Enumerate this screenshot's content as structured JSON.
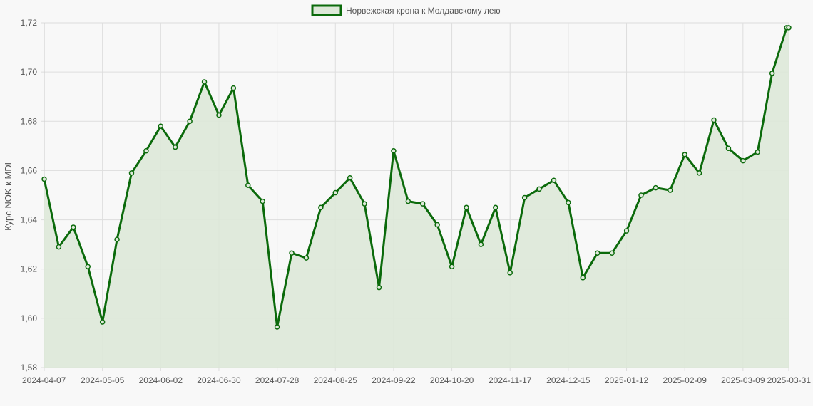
{
  "chart_data": {
    "type": "area",
    "title": "",
    "legend": {
      "label": "Норвежская крона к Молдавскому лею",
      "position": "top-center"
    },
    "ylabel": "Курс NOK к MDL",
    "xlabel": "",
    "ylim": [
      1.58,
      1.72
    ],
    "y_ticks": [
      "1,58",
      "1,60",
      "1,62",
      "1,64",
      "1,66",
      "1,68",
      "1,70",
      "1,72"
    ],
    "x_ticks": [
      "2024-04-07",
      "2024-05-05",
      "2024-06-02",
      "2024-06-30",
      "2024-07-28",
      "2024-08-25",
      "2024-09-22",
      "2024-10-20",
      "2024-11-17",
      "2024-12-15",
      "2025-01-12",
      "2025-02-09",
      "2025-03-09",
      "2025-03-31"
    ],
    "grid": true,
    "colors": {
      "line": "#0b6a0b",
      "fill": "#dde8d8",
      "grid": "#dddddd"
    },
    "series": [
      {
        "name": "Норвежская крона к Молдавскому лею",
        "x": [
          "2024-04-07",
          "2024-04-14",
          "2024-04-21",
          "2024-04-28",
          "2024-05-05",
          "2024-05-12",
          "2024-05-19",
          "2024-05-26",
          "2024-06-02",
          "2024-06-09",
          "2024-06-16",
          "2024-06-23",
          "2024-06-30",
          "2024-07-07",
          "2024-07-14",
          "2024-07-21",
          "2024-07-28",
          "2024-08-04",
          "2024-08-11",
          "2024-08-18",
          "2024-08-25",
          "2024-09-01",
          "2024-09-08",
          "2024-09-15",
          "2024-09-22",
          "2024-09-29",
          "2024-10-06",
          "2024-10-13",
          "2024-10-20",
          "2024-10-27",
          "2024-11-03",
          "2024-11-10",
          "2024-11-17",
          "2024-11-24",
          "2024-12-01",
          "2024-12-08",
          "2024-12-15",
          "2024-12-22",
          "2024-12-29",
          "2025-01-05",
          "2025-01-12",
          "2025-01-19",
          "2025-01-26",
          "2025-02-02",
          "2025-02-09",
          "2025-02-16",
          "2025-02-23",
          "2025-03-02",
          "2025-03-09",
          "2025-03-16",
          "2025-03-23",
          "2025-03-30",
          "2025-03-31"
        ],
        "values": [
          1.6565,
          1.629,
          1.637,
          1.621,
          1.5985,
          1.632,
          1.659,
          1.668,
          1.678,
          1.6695,
          1.68,
          1.696,
          1.6825,
          1.6935,
          1.654,
          1.6475,
          1.5965,
          1.6265,
          1.6245,
          1.645,
          1.651,
          1.657,
          1.6465,
          1.6125,
          1.668,
          1.6475,
          1.6465,
          1.638,
          1.621,
          1.645,
          1.63,
          1.645,
          1.6185,
          1.649,
          1.6525,
          1.656,
          1.647,
          1.6165,
          1.6265,
          1.6265,
          1.6355,
          1.65,
          1.653,
          1.652,
          1.6665,
          1.659,
          1.6805,
          1.669,
          1.664,
          1.6675,
          1.6995,
          1.718,
          1.718
        ]
      }
    ]
  }
}
